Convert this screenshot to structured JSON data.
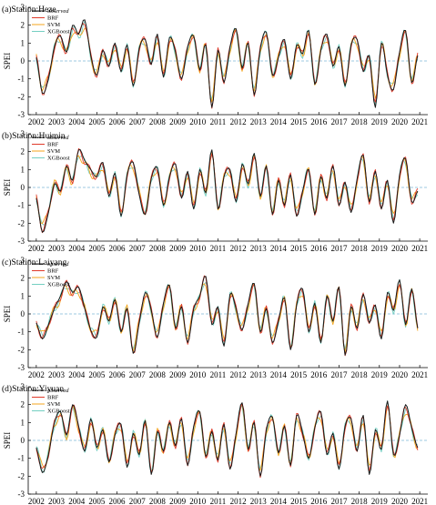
{
  "chart_data": [
    {
      "type": "line",
      "title": "(a)Station:Heze",
      "ylabel": "SPEI",
      "xlabel": "",
      "ylim": [
        -3,
        3
      ],
      "yticks": [
        -3,
        -2,
        -1,
        0,
        1,
        2,
        3
      ],
      "xlim": [
        2001.6,
        2021.4
      ],
      "xticks": [
        2002,
        2003,
        2004,
        2005,
        2006,
        2007,
        2008,
        2009,
        2010,
        2011,
        2012,
        2013,
        2014,
        2015,
        2016,
        2017,
        2018,
        2019,
        2020,
        2021
      ],
      "reference_line": 0,
      "legend_position": "top-left",
      "series_names": [
        "observed",
        "BRF",
        "SVM",
        "XGBoost"
      ],
      "anchors": {
        "x": [
          2002.0,
          2002.3,
          2002.6,
          2002.9,
          2003.2,
          2003.5,
          2003.8,
          2004.1,
          2004.4,
          2004.7,
          2005.0,
          2005.3,
          2005.6,
          2005.9,
          2006.2,
          2006.5,
          2006.8,
          2007.1,
          2007.4,
          2007.7,
          2008.0,
          2008.3,
          2008.6,
          2008.9,
          2009.2,
          2009.5,
          2009.8,
          2010.1,
          2010.4,
          2010.7,
          2011.0,
          2011.3,
          2011.6,
          2011.9,
          2012.2,
          2012.5,
          2012.8,
          2013.1,
          2013.4,
          2013.7,
          2014.0,
          2014.3,
          2014.6,
          2014.9,
          2015.2,
          2015.5,
          2015.8,
          2016.1,
          2016.4,
          2016.7,
          2017.0,
          2017.3,
          2017.6,
          2017.9,
          2018.2,
          2018.5,
          2018.8,
          2019.1,
          2019.4,
          2019.7,
          2020.0,
          2020.3,
          2020.6,
          2020.9
        ],
        "y": [
          0.2,
          -1.8,
          -1.0,
          0.8,
          1.4,
          0.5,
          2.0,
          1.5,
          2.3,
          0.3,
          -0.8,
          0.6,
          -0.3,
          1.0,
          -0.6,
          0.9,
          -1.4,
          0.7,
          1.2,
          -0.2,
          1.5,
          -0.9,
          1.3,
          0.5,
          -1.0,
          0.8,
          1.4,
          -0.5,
          0.9,
          -2.6,
          0.6,
          -1.2,
          0.8,
          1.8,
          -0.4,
          1.0,
          -1.9,
          0.7,
          1.6,
          -0.8,
          0.2,
          1.2,
          -1.0,
          0.9,
          0.4,
          1.7,
          -1.3,
          0.6,
          1.5,
          -0.3,
          0.8,
          -1.4,
          0.9,
          1.2,
          -0.6,
          0.3,
          -2.6,
          1.0,
          -0.8,
          -1.6,
          0.5,
          1.7,
          -1.2,
          0.3
        ]
      }
    },
    {
      "type": "line",
      "title": "(b)Station:Huimin",
      "ylabel": "SPEI",
      "xlabel": "",
      "ylim": [
        -3,
        3
      ],
      "yticks": [
        -3,
        -2,
        -1,
        0,
        1,
        2,
        3
      ],
      "xlim": [
        2001.6,
        2021.4
      ],
      "xticks": [
        2002,
        2003,
        2004,
        2005,
        2006,
        2007,
        2008,
        2009,
        2010,
        2011,
        2012,
        2013,
        2014,
        2015,
        2016,
        2017,
        2018,
        2019,
        2020,
        2021
      ],
      "reference_line": 0,
      "legend_position": "top-left",
      "series_names": [
        "observed",
        "BRF",
        "SVM",
        "XGBoost"
      ],
      "anchors": {
        "x": [
          2002.0,
          2002.3,
          2002.6,
          2002.9,
          2003.2,
          2003.5,
          2003.8,
          2004.1,
          2004.4,
          2004.7,
          2005.0,
          2005.3,
          2005.6,
          2005.9,
          2006.2,
          2006.5,
          2006.8,
          2007.1,
          2007.4,
          2007.7,
          2008.0,
          2008.3,
          2008.6,
          2008.9,
          2009.2,
          2009.5,
          2009.8,
          2010.1,
          2010.4,
          2010.7,
          2011.0,
          2011.3,
          2011.6,
          2011.9,
          2012.2,
          2012.5,
          2012.8,
          2013.1,
          2013.4,
          2013.7,
          2014.0,
          2014.3,
          2014.6,
          2014.9,
          2015.2,
          2015.5,
          2015.8,
          2016.1,
          2016.4,
          2016.7,
          2017.0,
          2017.3,
          2017.6,
          2017.9,
          2018.2,
          2018.5,
          2018.8,
          2019.1,
          2019.4,
          2019.7,
          2020.0,
          2020.3,
          2020.6,
          2020.9
        ],
        "y": [
          -0.6,
          -2.5,
          -1.4,
          0.2,
          -0.2,
          1.2,
          0.4,
          2.1,
          1.5,
          1.0,
          0.6,
          1.4,
          -0.5,
          0.8,
          -1.6,
          0.7,
          1.4,
          -0.4,
          -1.5,
          0.5,
          1.1,
          -1.0,
          0.6,
          1.3,
          -0.6,
          0.9,
          -1.2,
          1.0,
          -0.3,
          2.1,
          -1.2,
          0.6,
          1.0,
          -0.8,
          1.3,
          0.2,
          1.9,
          -0.5,
          1.2,
          -1.5,
          0.4,
          -1.0,
          0.7,
          -1.6,
          -0.2,
          1.0,
          -1.5,
          0.6,
          -0.6,
          1.2,
          -1.0,
          0.3,
          -1.4,
          0.5,
          1.8,
          -0.8,
          0.9,
          -1.2,
          0.4,
          -2.0,
          0.7,
          1.6,
          -0.8,
          -0.2
        ]
      }
    },
    {
      "type": "line",
      "title": "(c)Station:Laiyang",
      "ylabel": "SPEI",
      "xlabel": "",
      "ylim": [
        -3,
        3
      ],
      "yticks": [
        -3,
        -2,
        -1,
        0,
        1,
        2,
        3
      ],
      "xlim": [
        2001.6,
        2021.4
      ],
      "xticks": [
        2002,
        2003,
        2004,
        2005,
        2006,
        2007,
        2008,
        2009,
        2010,
        2011,
        2012,
        2013,
        2014,
        2015,
        2016,
        2017,
        2018,
        2019,
        2020,
        2021
      ],
      "reference_line": 0,
      "legend_position": "top-left",
      "series_names": [
        "observed",
        "BRF",
        "SVM",
        "XGBoost"
      ],
      "anchors": {
        "x": [
          2002.0,
          2002.3,
          2002.6,
          2002.9,
          2003.2,
          2003.5,
          2003.8,
          2004.1,
          2004.4,
          2004.7,
          2005.0,
          2005.3,
          2005.6,
          2005.9,
          2006.2,
          2006.5,
          2006.8,
          2007.1,
          2007.4,
          2007.7,
          2008.0,
          2008.3,
          2008.6,
          2008.9,
          2009.2,
          2009.5,
          2009.8,
          2010.1,
          2010.4,
          2010.7,
          2011.0,
          2011.3,
          2011.6,
          2011.9,
          2012.2,
          2012.5,
          2012.8,
          2013.1,
          2013.4,
          2013.7,
          2014.0,
          2014.3,
          2014.6,
          2014.9,
          2015.2,
          2015.5,
          2015.8,
          2016.1,
          2016.4,
          2016.7,
          2017.0,
          2017.3,
          2017.6,
          2017.9,
          2018.2,
          2018.5,
          2018.8,
          2019.1,
          2019.4,
          2019.7,
          2020.0,
          2020.3,
          2020.6,
          2020.9
        ],
        "y": [
          -0.5,
          -1.4,
          -0.6,
          0.3,
          1.0,
          1.8,
          1.2,
          1.5,
          0.3,
          -0.9,
          -1.3,
          0.4,
          -0.4,
          0.8,
          -1.0,
          0.3,
          -2.2,
          -0.5,
          1.2,
          0.2,
          -1.3,
          0.6,
          1.6,
          -0.8,
          0.4,
          -1.6,
          0.3,
          1.0,
          2.1,
          -0.6,
          0.4,
          -1.8,
          1.1,
          0.3,
          -0.9,
          0.6,
          1.7,
          -1.0,
          0.3,
          -1.6,
          -0.4,
          0.9,
          -2.0,
          0.5,
          1.4,
          -1.0,
          0.6,
          -1.6,
          1.0,
          -0.4,
          1.5,
          -2.3,
          0.4,
          -0.8,
          1.1,
          -0.5,
          0.5,
          -1.4,
          1.2,
          0.2,
          1.9,
          -0.6,
          1.4,
          -0.8
        ]
      }
    },
    {
      "type": "line",
      "title": "(d)Station:Yiyuan",
      "ylabel": "SPEI",
      "xlabel": "",
      "ylim": [
        -3,
        3
      ],
      "yticks": [
        -3,
        -2,
        -1,
        0,
        1,
        2,
        3
      ],
      "xlim": [
        2001.6,
        2021.4
      ],
      "xticks": [
        2002,
        2003,
        2004,
        2005,
        2006,
        2007,
        2008,
        2009,
        2010,
        2011,
        2012,
        2013,
        2014,
        2015,
        2016,
        2017,
        2018,
        2019,
        2020,
        2021
      ],
      "reference_line": 0,
      "legend_position": "top-left",
      "series_names": [
        "observed",
        "BRF",
        "SVM",
        "XGBoost"
      ],
      "anchors": {
        "x": [
          2002.0,
          2002.3,
          2002.6,
          2002.9,
          2003.2,
          2003.5,
          2003.8,
          2004.1,
          2004.4,
          2004.7,
          2005.0,
          2005.3,
          2005.6,
          2005.9,
          2006.2,
          2006.5,
          2006.8,
          2007.1,
          2007.4,
          2007.7,
          2008.0,
          2008.3,
          2008.6,
          2008.9,
          2009.2,
          2009.5,
          2009.8,
          2010.1,
          2010.4,
          2010.7,
          2011.0,
          2011.3,
          2011.6,
          2011.9,
          2012.2,
          2012.5,
          2012.8,
          2013.1,
          2013.4,
          2013.7,
          2014.0,
          2014.3,
          2014.6,
          2014.9,
          2015.2,
          2015.5,
          2015.8,
          2016.1,
          2016.4,
          2016.7,
          2017.0,
          2017.3,
          2017.6,
          2017.9,
          2018.2,
          2018.5,
          2018.8,
          2019.1,
          2019.4,
          2019.7,
          2020.0,
          2020.3,
          2020.6,
          2020.9
        ],
        "y": [
          -0.4,
          -1.8,
          -0.8,
          1.0,
          1.6,
          0.3,
          2.0,
          0.8,
          -0.6,
          1.2,
          -0.4,
          0.6,
          -1.2,
          0.3,
          0.9,
          -1.5,
          0.4,
          -0.8,
          1.1,
          -1.9,
          0.5,
          -0.6,
          1.0,
          -0.3,
          1.2,
          -1.4,
          0.8,
          1.6,
          -0.9,
          0.5,
          -1.1,
          0.9,
          -1.6,
          0.4,
          2.1,
          -0.5,
          1.0,
          -2.0,
          0.6,
          1.3,
          -0.7,
          0.8,
          -1.4,
          1.4,
          0.4,
          -1.0,
          0.7,
          1.6,
          -0.8,
          0.4,
          -1.6,
          0.8,
          1.2,
          -0.6,
          1.4,
          -1.9,
          0.6,
          -0.5,
          2.2,
          -0.8,
          0.3,
          2.0,
          0.7,
          -0.4
        ]
      }
    }
  ],
  "colors": {
    "observed": "#1a1a1a",
    "BRF": "#e03a2a",
    "SVM": "#f4a51c",
    "XGBoost": "#74cfc2",
    "zero_line": "#7db8d8"
  }
}
